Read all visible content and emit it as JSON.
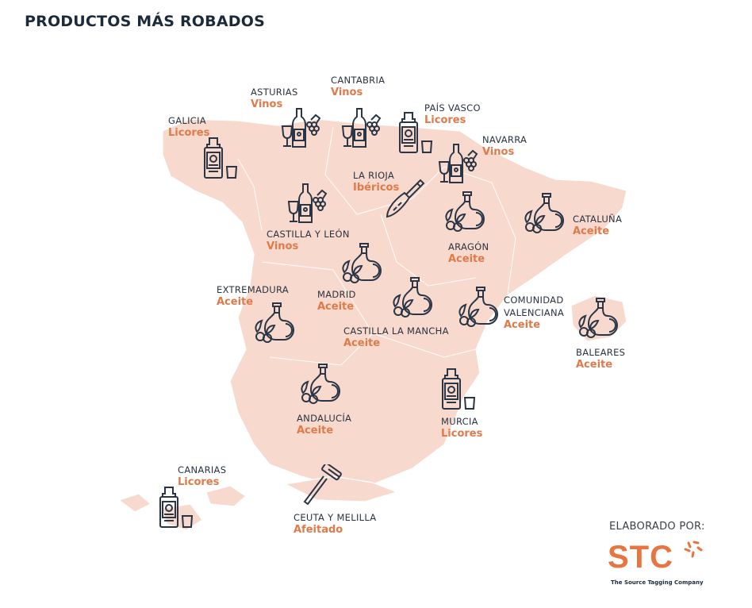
{
  "title": "PRODUCTOS MÁS ROBADOS",
  "colors": {
    "map_fill": "#f7dacd",
    "accent": "#e07a4a",
    "icon": "#2a3545",
    "title": "#1c2b3a"
  },
  "regions": [
    {
      "name": "GALICIA",
      "product": "Licores",
      "icon": "liquor-icon"
    },
    {
      "name": "ASTURIAS",
      "product": "Vinos",
      "icon": "wine-icon"
    },
    {
      "name": "CANTABRIA",
      "product": "Vinos",
      "icon": "wine-icon"
    },
    {
      "name": "PAÍS VASCO",
      "product": "Licores",
      "icon": "liquor-icon"
    },
    {
      "name": "NAVARRA",
      "product": "Vinos",
      "icon": "wine-icon"
    },
    {
      "name": "LA RIOJA",
      "product": "Ibéricos",
      "icon": "ham-icon"
    },
    {
      "name": "CASTILLA Y LEÓN",
      "product": "Vinos",
      "icon": "wine-icon"
    },
    {
      "name": "CATALUÑA",
      "product": "Aceite",
      "icon": "olive-oil-icon"
    },
    {
      "name": "ARAGÓN",
      "product": "Aceite",
      "icon": "olive-oil-icon"
    },
    {
      "name": "MADRID",
      "product": "Aceite",
      "icon": "olive-oil-icon"
    },
    {
      "name": "EXTREMADURA",
      "product": "Aceite",
      "icon": "olive-oil-icon"
    },
    {
      "name": "CASTILLA LA MANCHA",
      "product": "Aceite",
      "icon": "olive-oil-icon"
    },
    {
      "name": "COMUNIDAD VALENCIANA",
      "product": "Aceite",
      "icon": "olive-oil-icon"
    },
    {
      "name": "BALEARES",
      "product": "Aceite",
      "icon": "olive-oil-icon"
    },
    {
      "name": "ANDALUCÍA",
      "product": "Aceite",
      "icon": "olive-oil-icon"
    },
    {
      "name": "MURCIA",
      "product": "Licores",
      "icon": "liquor-icon"
    },
    {
      "name": "CANARIAS",
      "product": "Licores",
      "icon": "liquor-icon"
    },
    {
      "name": "CEUTA Y MELILLA",
      "product": "Afeitado",
      "icon": "razor-icon"
    }
  ],
  "credit": {
    "label": "ELABORADO POR:",
    "logo": "STC",
    "tagline": "The Source Tagging Company"
  }
}
